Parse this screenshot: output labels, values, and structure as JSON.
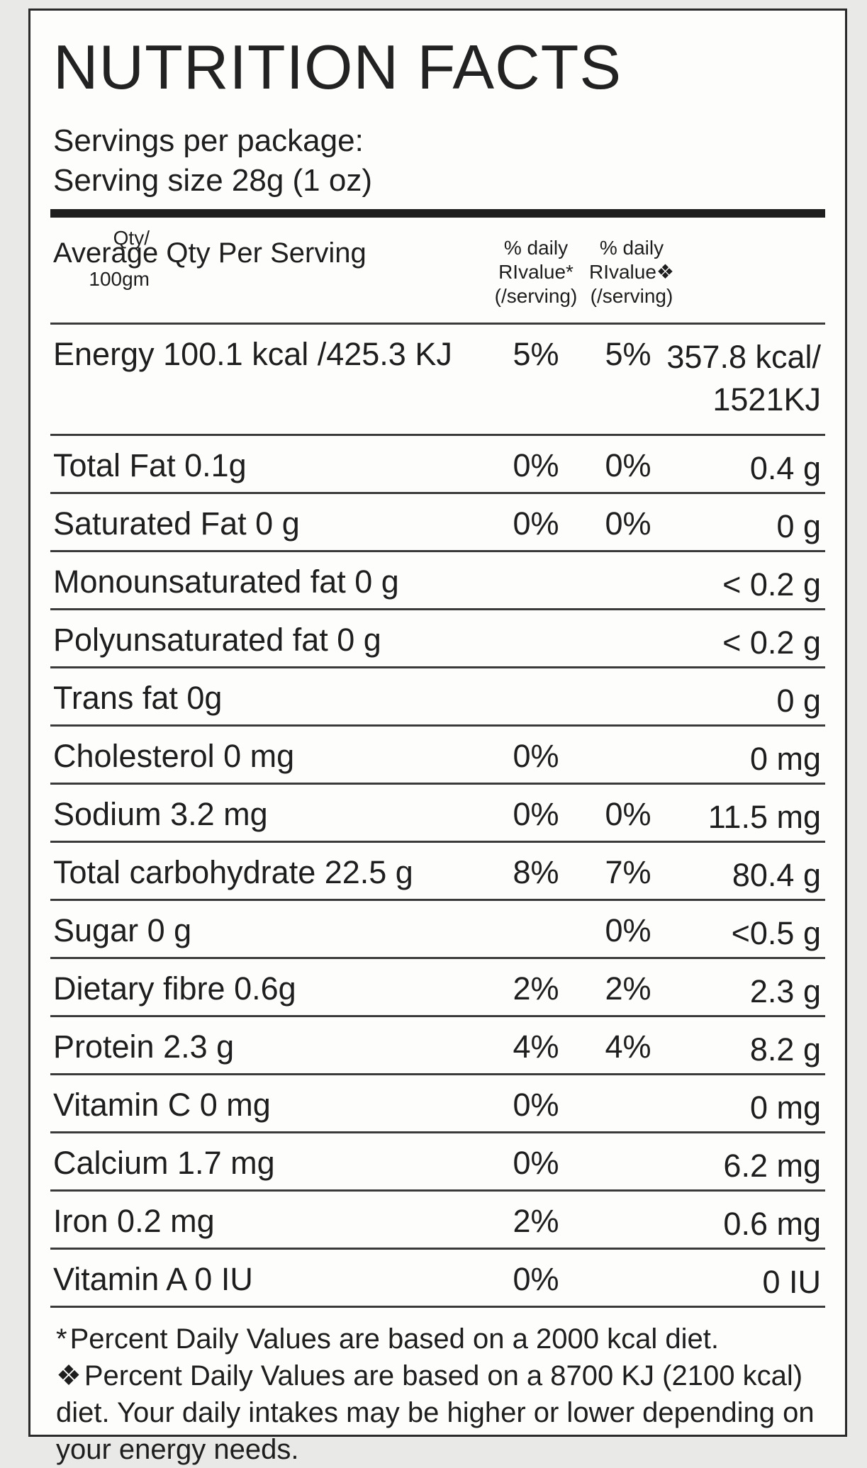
{
  "title": "NUTRITION FACTS",
  "servings_per_package": "Servings per package:",
  "serving_size": "Serving size 28g (1 oz)",
  "header": {
    "label": "Average Qty Per Serving",
    "col1_line1": "% daily",
    "col1_line2": "RIvalue*",
    "col1_line3": "(/serving)",
    "col2_line1": "% daily",
    "col2_line2": "RIvalue❖",
    "col2_line3": "(/serving)",
    "col3_line1": "Qty/",
    "col3_line2": "100gm"
  },
  "rows": [
    {
      "name": "Energy 100.1 kcal /425.3 KJ",
      "d1": "5%",
      "d2": "5%",
      "qty": "357.8 kcal/",
      "qty2": "1521KJ"
    },
    {
      "name": "Total Fat 0.1g",
      "d1": "0%",
      "d2": "0%",
      "qty": "0.4 g"
    },
    {
      "name": "Saturated Fat 0 g",
      "d1": "0%",
      "d2": "0%",
      "qty": "0 g"
    },
    {
      "name": "Monounsaturated fat 0 g",
      "d1": "",
      "d2": "",
      "qty": "< 0.2 g"
    },
    {
      "name": "Polyunsaturated fat 0 g",
      "d1": "",
      "d2": "",
      "qty": "< 0.2 g"
    },
    {
      "name": "Trans fat 0g",
      "d1": "",
      "d2": "",
      "qty": "0 g"
    },
    {
      "name": "Cholesterol 0 mg",
      "d1": "0%",
      "d2": "",
      "qty": "0 mg"
    },
    {
      "name": "Sodium 3.2 mg",
      "d1": "0%",
      "d2": "0%",
      "qty": "11.5 mg"
    },
    {
      "name": "Total carbohydrate 22.5 g",
      "d1": "8%",
      "d2": "7%",
      "qty": "80.4 g"
    },
    {
      "name": "Sugar 0 g",
      "d1": "",
      "d2": "0%",
      "qty": "<0.5 g"
    },
    {
      "name": "Dietary fibre 0.6g",
      "d1": "2%",
      "d2": "2%",
      "qty": "2.3 g"
    },
    {
      "name": "Protein 2.3 g",
      "d1": "4%",
      "d2": "4%",
      "qty": "8.2 g"
    },
    {
      "name": "Vitamin C 0 mg",
      "d1": "0%",
      "d2": "",
      "qty": "0 mg"
    },
    {
      "name": "Calcium 1.7 mg",
      "d1": "0%",
      "d2": "",
      "qty": "6.2 mg"
    },
    {
      "name": "Iron 0.2 mg",
      "d1": "2%",
      "d2": "",
      "qty": "0.6 mg"
    },
    {
      "name": "Vitamin A 0 IU",
      "d1": "0%",
      "d2": "",
      "qty": "0 IU"
    }
  ],
  "footnotes": {
    "note1_mark": "*",
    "note1": "Percent Daily Values are based on a 2000 kcal diet.",
    "note2_mark": "❖",
    "note2": "Percent Daily Values are based on a 8700 KJ (2100 kcal) diet. Your daily intakes may be higher or lower depending on your energy needs."
  }
}
